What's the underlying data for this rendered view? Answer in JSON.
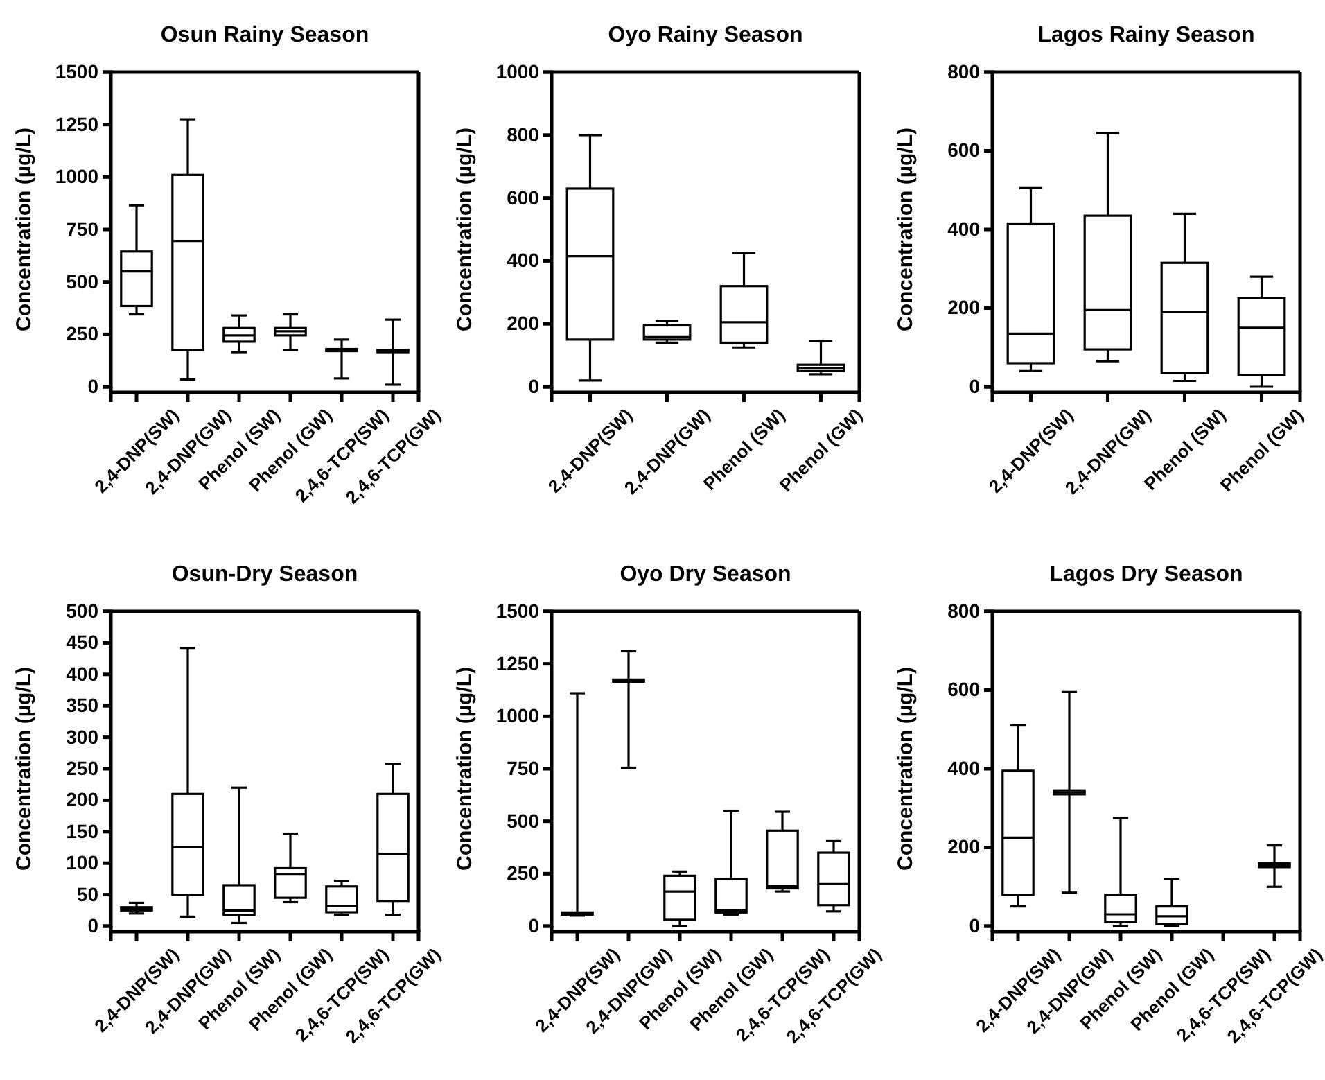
{
  "chart_data": [
    {
      "type": "box",
      "title": "Osun Rainy Season",
      "ylabel": "Concentration (µg/L)",
      "categories": [
        "2,4-DNP(SW)",
        "2,4-DNP(GW)",
        "Phenol (SW)",
        "Phenol (GW)",
        "2,4,6-TCP(SW)",
        "2,4,6-TCP(GW)"
      ],
      "ylim": [
        0,
        1500
      ],
      "yticks": [
        0,
        250,
        500,
        750,
        1000,
        1250,
        1500
      ],
      "boxes": [
        {
          "low": 345,
          "q1": 385,
          "median": 550,
          "q3": 645,
          "high": 865
        },
        {
          "low": 35,
          "q1": 175,
          "median": 695,
          "q3": 1010,
          "high": 1275
        },
        {
          "low": 165,
          "q1": 215,
          "median": 245,
          "q3": 280,
          "high": 340
        },
        {
          "low": 175,
          "q1": 245,
          "median": 265,
          "q3": 280,
          "high": 345
        },
        {
          "low": 40,
          "q1": 170,
          "median": 175,
          "q3": 180,
          "high": 225
        },
        {
          "low": 10,
          "q1": 165,
          "median": 170,
          "q3": 175,
          "high": 320
        }
      ]
    },
    {
      "type": "box",
      "title": "Oyo Rainy Season",
      "ylabel": "Concentration (µg/L)",
      "categories": [
        "2,4-DNP(SW)",
        "2,4-DNP(GW)",
        "Phenol (SW)",
        "Phenol (GW)"
      ],
      "ylim": [
        0,
        1000
      ],
      "yticks": [
        0,
        200,
        400,
        600,
        800,
        1000
      ],
      "boxes": [
        {
          "low": 20,
          "q1": 150,
          "median": 415,
          "q3": 630,
          "high": 800
        },
        {
          "low": 140,
          "q1": 150,
          "median": 160,
          "q3": 195,
          "high": 210
        },
        {
          "low": 125,
          "q1": 140,
          "median": 205,
          "q3": 320,
          "high": 425
        },
        {
          "low": 40,
          "q1": 50,
          "median": 60,
          "q3": 70,
          "high": 145
        }
      ]
    },
    {
      "type": "box",
      "title": "Lagos Rainy Season",
      "ylabel": "Concentration (µg/L)",
      "categories": [
        "2,4-DNP(SW)",
        "2,4-DNP(GW)",
        "Phenol (SW)",
        "Phenol (GW)"
      ],
      "ylim": [
        0,
        800
      ],
      "yticks": [
        0,
        200,
        400,
        600,
        800
      ],
      "boxes": [
        {
          "low": 40,
          "q1": 60,
          "median": 135,
          "q3": 415,
          "high": 505
        },
        {
          "low": 65,
          "q1": 95,
          "median": 195,
          "q3": 435,
          "high": 645
        },
        {
          "low": 15,
          "q1": 35,
          "median": 190,
          "q3": 315,
          "high": 440
        },
        {
          "low": 0,
          "q1": 30,
          "median": 150,
          "q3": 225,
          "high": 280
        }
      ]
    },
    {
      "type": "box",
      "title": "Osun-Dry Season",
      "ylabel": "Concentration (µg/L)",
      "categories": [
        "2,4-DNP(SW)",
        "2,4-DNP(GW)",
        "Phenol (SW)",
        "Phenol (GW)",
        "2,4,6-TCP(SW)",
        "2,4,6-TCP(GW)"
      ],
      "ylim": [
        0,
        500
      ],
      "yticks": [
        0,
        50,
        100,
        150,
        200,
        250,
        300,
        350,
        400,
        450,
        500
      ],
      "boxes": [
        {
          "low": 20,
          "q1": 25,
          "median": 28,
          "q3": 30,
          "high": 37
        },
        {
          "low": 15,
          "q1": 50,
          "median": 125,
          "q3": 210,
          "high": 442
        },
        {
          "low": 5,
          "q1": 18,
          "median": 25,
          "q3": 65,
          "high": 220
        },
        {
          "low": 38,
          "q1": 45,
          "median": 83,
          "q3": 92,
          "high": 147
        },
        {
          "low": 18,
          "q1": 22,
          "median": 32,
          "q3": 63,
          "high": 72
        },
        {
          "low": 18,
          "q1": 40,
          "median": 115,
          "q3": 210,
          "high": 258
        }
      ]
    },
    {
      "type": "box",
      "title": "Oyo Dry Season",
      "ylabel": "Concentration (µg/L)",
      "categories": [
        "2,4-DNP(SW)",
        "2,4-DNP(GW)",
        "Phenol (SW)",
        "Phenol (GW)",
        "2,4,6-TCP(SW)",
        "2,4,6-TCP(GW)"
      ],
      "ylim": [
        0,
        1500
      ],
      "yticks": [
        0,
        250,
        500,
        750,
        1000,
        1250,
        1500
      ],
      "boxes": [
        {
          "low": 50,
          "q1": 55,
          "median": 60,
          "q3": 65,
          "high": 1110
        },
        {
          "low": 755,
          "q1": 1165,
          "median": 1170,
          "q3": 1175,
          "high": 1310
        },
        {
          "low": 0,
          "q1": 30,
          "median": 165,
          "q3": 240,
          "high": 260
        },
        {
          "low": 55,
          "q1": 65,
          "median": 75,
          "q3": 225,
          "high": 550
        },
        {
          "low": 165,
          "q1": 180,
          "median": 190,
          "q3": 455,
          "high": 545
        },
        {
          "low": 70,
          "q1": 100,
          "median": 200,
          "q3": 350,
          "high": 405
        }
      ]
    },
    {
      "type": "box",
      "title": "Lagos Dry Season",
      "ylabel": "Concentration (µg/L)",
      "categories": [
        "2,4-DNP(SW)",
        "2,4-DNP(GW)",
        "Phenol (SW)",
        "Phenol (GW)",
        "2,4,6-TCP(SW)",
        "2,4,6-TCP(GW)"
      ],
      "ylim": [
        0,
        800
      ],
      "yticks": [
        0,
        200,
        400,
        600,
        800
      ],
      "boxes": [
        {
          "low": 50,
          "q1": 80,
          "median": 225,
          "q3": 395,
          "high": 510
        },
        {
          "low": 85,
          "q1": 335,
          "median": 340,
          "q3": 345,
          "high": 595
        },
        {
          "low": 0,
          "q1": 10,
          "median": 30,
          "q3": 80,
          "high": 275
        },
        {
          "low": 0,
          "q1": 5,
          "median": 25,
          "q3": 50,
          "high": 120
        },
        null,
        {
          "low": 100,
          "q1": 150,
          "median": 155,
          "q3": 160,
          "high": 205
        }
      ]
    }
  ]
}
